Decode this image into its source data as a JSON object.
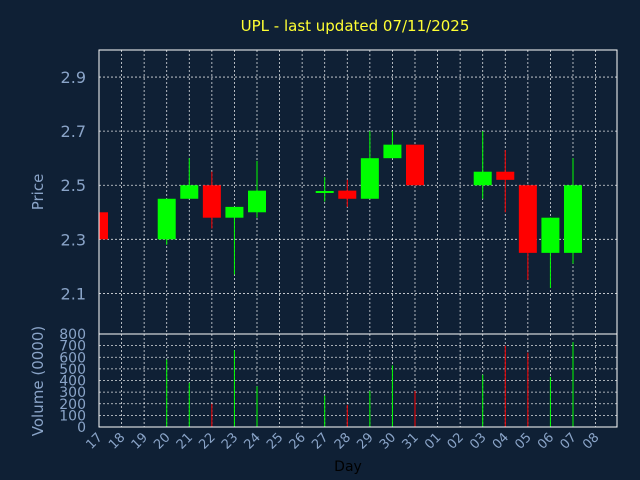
{
  "chart_data": {
    "type": "candlestick",
    "title": "UPL - last updated 07/11/2025",
    "xlabel": "Day",
    "colors": {
      "up": "#00ff00",
      "down": "#ff0000",
      "background": "#0f2035",
      "title": "#ffff33",
      "text": "#8aa4c8",
      "grid": "#ffffff"
    },
    "days": [
      "17",
      "18",
      "19",
      "20",
      "21",
      "22",
      "23",
      "24",
      "25",
      "26",
      "27",
      "28",
      "29",
      "30",
      "31",
      "01",
      "02",
      "03",
      "04",
      "05",
      "06",
      "07",
      "08"
    ],
    "price_panel": {
      "ylabel": "Price",
      "ylim": [
        1.95,
        3.0
      ],
      "ticks": [
        "2.1",
        "2.3",
        "2.5",
        "2.7",
        "2.9"
      ]
    },
    "volume_panel": {
      "ylabel": "Volume (0000)",
      "ylim": [
        0,
        800
      ],
      "ticks": [
        "0",
        "100",
        "200",
        "300",
        "400",
        "500",
        "600",
        "700",
        "800"
      ]
    },
    "candles": [
      {
        "day": "17",
        "open": 2.4,
        "high": 2.4,
        "low": 2.3,
        "close": 2.3,
        "volume": 0
      },
      {
        "day": "20",
        "open": 2.3,
        "high": 2.45,
        "low": 2.28,
        "close": 2.45,
        "volume": 580
      },
      {
        "day": "21",
        "open": 2.45,
        "high": 2.6,
        "low": 2.45,
        "close": 2.5,
        "volume": 380
      },
      {
        "day": "22",
        "open": 2.5,
        "high": 2.55,
        "low": 2.34,
        "close": 2.38,
        "volume": 200
      },
      {
        "day": "23",
        "open": 2.38,
        "high": 2.42,
        "low": 2.17,
        "close": 2.42,
        "volume": 660
      },
      {
        "day": "24",
        "open": 2.4,
        "high": 2.59,
        "low": 2.38,
        "close": 2.48,
        "volume": 350
      },
      {
        "day": "27",
        "open": 2.47,
        "high": 2.53,
        "low": 2.44,
        "close": 2.475,
        "volume": 270
      },
      {
        "day": "28",
        "open": 2.48,
        "high": 2.52,
        "low": 2.42,
        "close": 2.45,
        "volume": 190
      },
      {
        "day": "29",
        "open": 2.45,
        "high": 2.7,
        "low": 2.45,
        "close": 2.6,
        "volume": 310
      },
      {
        "day": "30",
        "open": 2.6,
        "high": 2.7,
        "low": 2.6,
        "close": 2.65,
        "volume": 530
      },
      {
        "day": "31",
        "open": 2.65,
        "high": 2.65,
        "low": 2.5,
        "close": 2.5,
        "volume": 310
      },
      {
        "day": "03",
        "open": 2.5,
        "high": 2.7,
        "low": 2.45,
        "close": 2.55,
        "volume": 450
      },
      {
        "day": "04",
        "open": 2.55,
        "high": 2.63,
        "low": 2.4,
        "close": 2.52,
        "volume": 700
      },
      {
        "day": "05",
        "open": 2.5,
        "high": 2.5,
        "low": 2.15,
        "close": 2.25,
        "volume": 640
      },
      {
        "day": "06",
        "open": 2.25,
        "high": 2.38,
        "low": 2.12,
        "close": 2.38,
        "volume": 430
      },
      {
        "day": "07",
        "open": 2.25,
        "high": 2.6,
        "low": 2.21,
        "close": 2.5,
        "volume": 730
      }
    ]
  }
}
